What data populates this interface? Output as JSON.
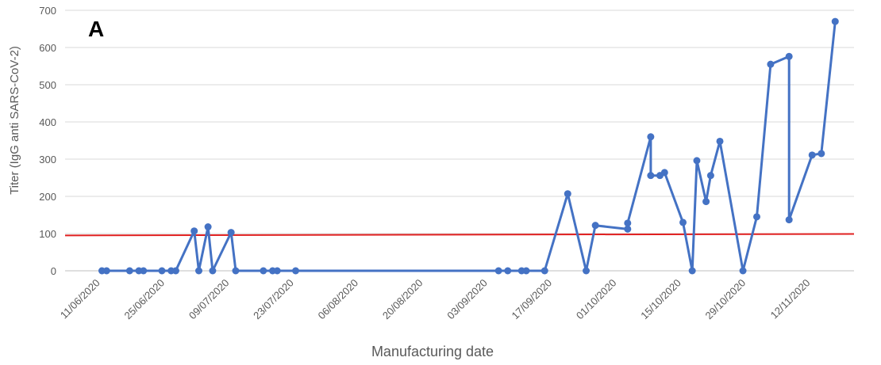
{
  "panel_label": "A",
  "chart_data": {
    "type": "line",
    "title": "",
    "xlabel": "Manufacturing date",
    "ylabel": "Titer (IgG anti SARS-CoV-2)",
    "ylim": [
      0,
      700
    ],
    "y_ticks": [
      0,
      100,
      200,
      300,
      400,
      500,
      600,
      700
    ],
    "x_ticks": [
      "11/06/2020",
      "25/06/2020",
      "09/07/2020",
      "23/07/2020",
      "06/08/2020",
      "20/08/2020",
      "03/09/2020",
      "17/09/2020",
      "01/10/2020",
      "15/10/2020",
      "29/10/2020",
      "12/11/2020"
    ],
    "grid": true,
    "legend": "none",
    "series": [
      {
        "color": "#4472C4",
        "marker": "circle",
        "points": [
          [
            "2020-06-12",
            0
          ],
          [
            "2020-06-13",
            0
          ],
          [
            "2020-06-18",
            0
          ],
          [
            "2020-06-20",
            0
          ],
          [
            "2020-06-21",
            0
          ],
          [
            "2020-06-25",
            0
          ],
          [
            "2020-06-27",
            0
          ],
          [
            "2020-06-28",
            0
          ],
          [
            "2020-07-02",
            107
          ],
          [
            "2020-07-03",
            0
          ],
          [
            "2020-07-05",
            118
          ],
          [
            "2020-07-06",
            0
          ],
          [
            "2020-07-10",
            103
          ],
          [
            "2020-07-11",
            0
          ],
          [
            "2020-07-17",
            0
          ],
          [
            "2020-07-19",
            0
          ],
          [
            "2020-07-20",
            0
          ],
          [
            "2020-07-24",
            0
          ],
          [
            "2020-09-06",
            0
          ],
          [
            "2020-09-08",
            0
          ],
          [
            "2020-09-11",
            0
          ],
          [
            "2020-09-12",
            0
          ],
          [
            "2020-09-16",
            0
          ],
          [
            "2020-09-21",
            207
          ],
          [
            "2020-09-25",
            0
          ],
          [
            "2020-09-27",
            122
          ],
          [
            "2020-10-04",
            112
          ],
          [
            "2020-10-04",
            128
          ],
          [
            "2020-10-09",
            360
          ],
          [
            "2020-10-09",
            256
          ],
          [
            "2020-10-11",
            256
          ],
          [
            "2020-10-12",
            264
          ],
          [
            "2020-10-16",
            130
          ],
          [
            "2020-10-18",
            0
          ],
          [
            "2020-10-19",
            296
          ],
          [
            "2020-10-21",
            186
          ],
          [
            "2020-10-22",
            256
          ],
          [
            "2020-10-24",
            348
          ],
          [
            "2020-10-29",
            0
          ],
          [
            "2020-11-01",
            145
          ],
          [
            "2020-11-04",
            555
          ],
          [
            "2020-11-08",
            576
          ],
          [
            "2020-11-08",
            137
          ],
          [
            "2020-11-13",
            311
          ],
          [
            "2020-11-15",
            315
          ],
          [
            "2020-11-18",
            670
          ]
        ]
      }
    ],
    "threshold_line": {
      "color": "#E02020",
      "y_start": 95,
      "y_end": 99
    }
  }
}
